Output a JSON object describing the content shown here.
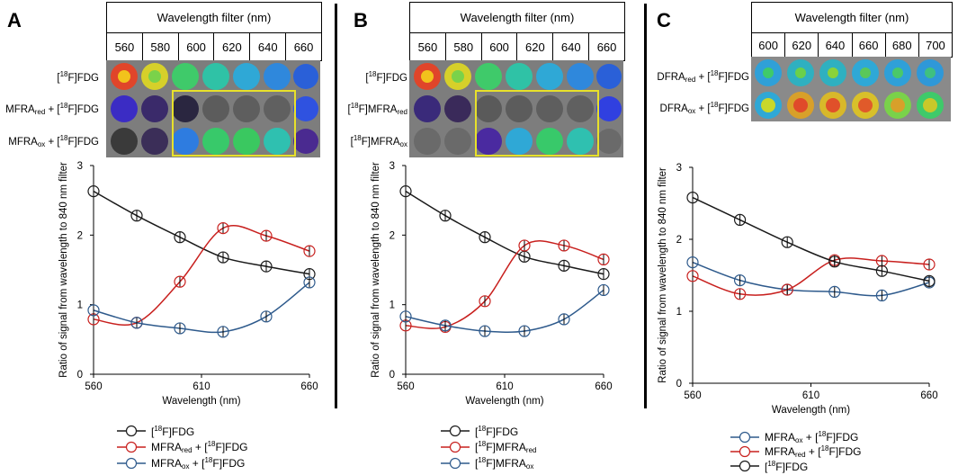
{
  "panels": [
    {
      "letter": "A",
      "filter_title": "Wavelength filter (nm)",
      "filters": [
        "560",
        "580",
        "600",
        "620",
        "640",
        "660"
      ],
      "row_labels": [
        {
          "main": "[",
          "sup": "18",
          "rest": "F]FDG",
          "sub": "",
          "tail": ""
        },
        {
          "main": "MFRA",
          "sub": "red",
          "tail": " + [",
          "sup": "18",
          "rest": "F]FDG"
        },
        {
          "main": "MFRA",
          "sub": "ox",
          "tail": " + [",
          "sup": "18",
          "rest": "F]FDG"
        }
      ]
    },
    {
      "letter": "B",
      "filter_title": "Wavelength filter (nm)",
      "filters": [
        "560",
        "580",
        "600",
        "620",
        "640",
        "660"
      ],
      "row_labels": [
        {
          "main": "[",
          "sup": "18",
          "rest": "F]FDG",
          "sub": "",
          "tail": ""
        },
        {
          "main": "[",
          "sup": "18",
          "rest": "F]MFRA",
          "sub": "red",
          "tail": ""
        },
        {
          "main": "[",
          "sup": "18",
          "rest": "F]MFRA",
          "sub": "ox",
          "tail": ""
        }
      ]
    },
    {
      "letter": "C",
      "filter_title": "Wavelength filter (nm)",
      "filters": [
        "600",
        "620",
        "640",
        "660",
        "680",
        "700"
      ],
      "row_labels": [
        {
          "main": "DFRA",
          "sub": "red",
          "tail": " + [",
          "sup": "18",
          "rest": "F]FDG"
        },
        {
          "main": "DFRA",
          "sub": "ox",
          "tail": " + [",
          "sup": "18",
          "rest": "F]FDG"
        }
      ]
    }
  ],
  "colors": {
    "black": "#1a1a1a",
    "red": "#c8201e",
    "blue": "#2e5a8c"
  },
  "chart_data": [
    {
      "type": "line",
      "ylabel": "Ratio of signal from wavelength to 840 nm filter",
      "xlabel": "Wavelength (nm)",
      "xlim": [
        560,
        660
      ],
      "ylim": [
        0,
        3
      ],
      "xticks": [
        "560",
        "610",
        "660"
      ],
      "yticks": [
        "0",
        "1",
        "2",
        "3"
      ],
      "x": [
        560,
        580,
        600,
        620,
        640,
        660
      ],
      "series": [
        {
          "name": "[18F]FDG",
          "label_main": "[",
          "label_sup": "18",
          "label_rest": "F]FDG",
          "label_sub": "",
          "label_tail": "",
          "color": "black",
          "values": [
            2.63,
            2.28,
            1.97,
            1.68,
            1.55,
            1.44
          ]
        },
        {
          "name": "MFRAred + [18F]FDG",
          "label_main": "MFRA",
          "label_sub": "red",
          "label_tail": " + [",
          "label_sup": "18",
          "label_rest": "F]FDG",
          "color": "red",
          "values": [
            0.79,
            0.74,
            1.33,
            2.1,
            1.99,
            1.77
          ]
        },
        {
          "name": "MFRAox + [18F]FDG",
          "label_main": "MFRA",
          "label_sub": "ox",
          "label_tail": " + [",
          "label_sup": "18",
          "label_rest": "F]FDG",
          "color": "blue",
          "values": [
            0.92,
            0.74,
            0.66,
            0.61,
            0.83,
            1.32
          ]
        }
      ]
    },
    {
      "type": "line",
      "ylabel": "Ratio of signal from wavelength to 840 nm filter",
      "xlabel": "Wavelength (nm)",
      "xlim": [
        560,
        660
      ],
      "ylim": [
        0,
        3
      ],
      "xticks": [
        "560",
        "610",
        "660"
      ],
      "yticks": [
        "0",
        "1",
        "2",
        "3"
      ],
      "x": [
        560,
        580,
        600,
        620,
        640,
        660
      ],
      "series": [
        {
          "name": "[18F]FDG",
          "label_main": "[",
          "label_sup": "18",
          "label_rest": "F]FDG",
          "label_sub": "",
          "label_tail": "",
          "color": "black",
          "values": [
            2.63,
            2.28,
            1.97,
            1.69,
            1.56,
            1.44
          ]
        },
        {
          "name": "[18F]MFRAred",
          "label_main": "[",
          "label_sup": "18",
          "label_rest": "F]MFRA",
          "label_sub": "red",
          "label_tail": "",
          "color": "red",
          "values": [
            0.7,
            0.68,
            1.05,
            1.85,
            1.85,
            1.65
          ]
        },
        {
          "name": "[18F]MFRAox",
          "label_main": "[",
          "label_sup": "18",
          "label_rest": "F]MFRA",
          "label_sub": "ox",
          "label_tail": "",
          "color": "blue",
          "values": [
            0.83,
            0.7,
            0.62,
            0.62,
            0.79,
            1.21
          ]
        }
      ]
    },
    {
      "type": "line",
      "ylabel": "Ratio of signal from wavelength to 840 nm filter",
      "xlabel": "Wavelength (nm)",
      "xlim": [
        560,
        660
      ],
      "ylim": [
        0,
        3
      ],
      "xticks": [
        "560",
        "610",
        "660"
      ],
      "yticks": [
        "0",
        "1",
        "2",
        "3"
      ],
      "x": [
        560,
        580,
        600,
        620,
        640,
        660
      ],
      "series": [
        {
          "name": "MFRAox + [18F]FDG",
          "label_main": "MFRA",
          "label_sub": "ox",
          "label_tail": " + [",
          "label_sup": "18",
          "label_rest": "F]FDG",
          "color": "blue",
          "values": [
            1.68,
            1.43,
            1.3,
            1.27,
            1.22,
            1.4
          ]
        },
        {
          "name": "MFRAred + [18F]FDG",
          "label_main": "MFRA",
          "label_sub": "red",
          "label_tail": " + [",
          "label_sup": "18",
          "label_rest": "F]FDG",
          "color": "red",
          "values": [
            1.49,
            1.24,
            1.3,
            1.71,
            1.7,
            1.65
          ]
        },
        {
          "name": "[18F]FDG",
          "label_main": "[",
          "label_sup": "18",
          "label_rest": "F]FDG",
          "label_sub": "",
          "label_tail": "",
          "color": "black",
          "values": [
            2.58,
            2.27,
            1.96,
            1.69,
            1.56,
            1.42
          ]
        }
      ]
    }
  ]
}
